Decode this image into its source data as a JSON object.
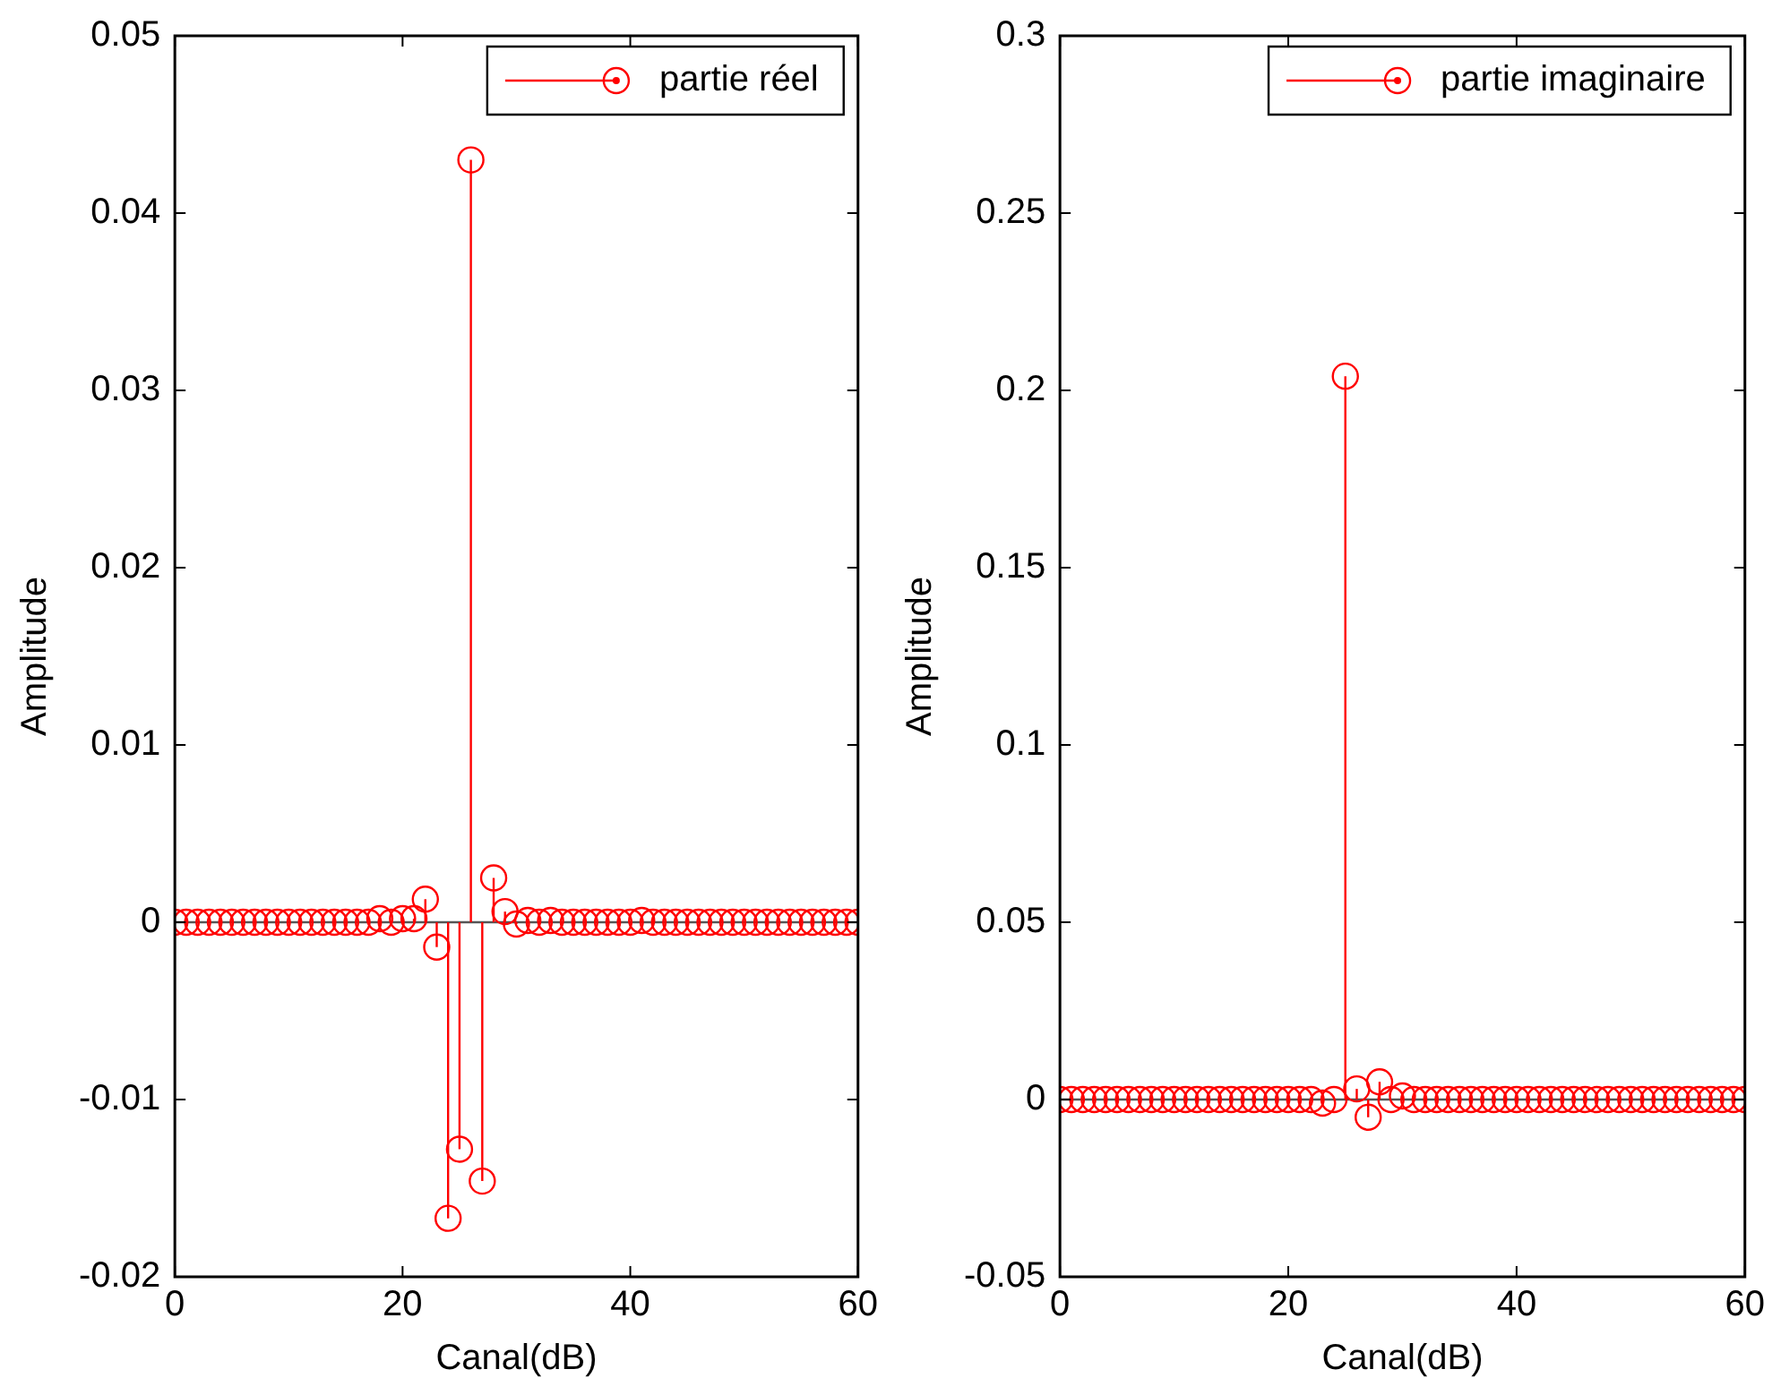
{
  "chart_data": [
    {
      "type": "lollipop",
      "xlabel": "Canal(dB)",
      "ylabel": "Amplitude",
      "legend": "top right",
      "marker": "circle",
      "grid": false,
      "ref_lines": [
        {
          "axis": "y",
          "value": 0,
          "color": "#555555"
        }
      ],
      "xlim": [
        0,
        60
      ],
      "xticks": [
        0,
        20,
        40,
        60
      ],
      "ylim": [
        -0.02,
        0.05
      ],
      "yticks": [
        -0.02,
        -0.01,
        0,
        0.01,
        0.02,
        0.03,
        0.04,
        0.05
      ],
      "x": [
        0,
        1,
        2,
        3,
        4,
        5,
        6,
        7,
        8,
        9,
        10,
        11,
        12,
        13,
        14,
        15,
        16,
        17,
        18,
        19,
        20,
        21,
        22,
        23,
        24,
        25,
        26,
        27,
        28,
        29,
        30,
        31,
        32,
        33,
        34,
        35,
        36,
        37,
        38,
        39,
        40,
        41,
        42,
        43,
        44,
        45,
        46,
        47,
        48,
        49,
        50,
        51,
        52,
        53,
        54,
        55,
        56,
        57,
        58,
        59,
        60
      ],
      "series": [
        {
          "name": "partie réel",
          "color": "#ff0000",
          "values": [
            0,
            0,
            0,
            0,
            0,
            0,
            0,
            0,
            0,
            0,
            0,
            0,
            0,
            0,
            0,
            0,
            0,
            0,
            0.0002,
            0,
            0.0002,
            0.0002,
            0.0013,
            -0.0014,
            -0.0167,
            -0.0128,
            0.043,
            -0.0146,
            0.0025,
            0.0006,
            -0.0001,
            0.0001,
            0,
            0.0001,
            0,
            0,
            0,
            0,
            0,
            0,
            0,
            0.0001,
            0,
            0,
            0,
            0,
            0,
            0,
            0,
            0,
            0,
            0,
            0,
            0,
            0,
            0,
            0,
            0,
            0,
            0,
            0
          ]
        }
      ]
    },
    {
      "type": "lollipop",
      "xlabel": "Canal(dB)",
      "ylabel": "Amplitude",
      "legend": "top right",
      "marker": "circle",
      "grid": false,
      "ref_lines": [
        {
          "axis": "y",
          "value": 0,
          "color": "#555555"
        }
      ],
      "xlim": [
        0,
        60
      ],
      "xticks": [
        0,
        20,
        40,
        60
      ],
      "ylim": [
        -0.05,
        0.3
      ],
      "yticks": [
        -0.05,
        0,
        0.05,
        0.1,
        0.15,
        0.2,
        0.25,
        0.3
      ],
      "x": [
        0,
        1,
        2,
        3,
        4,
        5,
        6,
        7,
        8,
        9,
        10,
        11,
        12,
        13,
        14,
        15,
        16,
        17,
        18,
        19,
        20,
        21,
        22,
        23,
        24,
        25,
        26,
        27,
        28,
        29,
        30,
        31,
        32,
        33,
        34,
        35,
        36,
        37,
        38,
        39,
        40,
        41,
        42,
        43,
        44,
        45,
        46,
        47,
        48,
        49,
        50,
        51,
        52,
        53,
        54,
        55,
        56,
        57,
        58,
        59,
        60
      ],
      "series": [
        {
          "name": "partie imaginaire",
          "color": "#ff0000",
          "values": [
            0,
            0,
            0,
            0,
            0,
            0,
            0,
            0,
            0,
            0,
            0,
            0,
            0,
            0,
            0,
            0,
            0,
            0,
            0,
            0,
            0,
            0,
            0,
            -0.001,
            0,
            0.204,
            0.003,
            -0.005,
            0.005,
            0,
            0.001,
            0,
            0,
            0,
            0,
            0,
            0,
            0,
            0,
            0,
            0,
            0,
            0,
            0,
            0,
            0,
            0,
            0,
            0,
            0,
            0,
            0,
            0,
            0,
            0,
            0,
            0,
            0,
            0,
            0,
            0
          ]
        }
      ]
    }
  ]
}
